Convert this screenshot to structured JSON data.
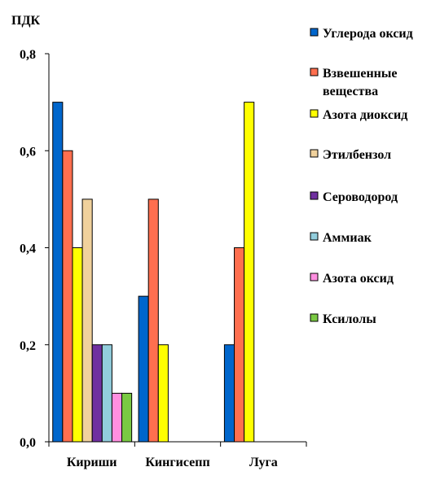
{
  "chart_data": {
    "type": "bar",
    "ylabel": "ПДК",
    "xlabel": "",
    "ylim": [
      0,
      0.8
    ],
    "y_ticks": [
      "0,0",
      "0,2",
      "0,4",
      "0,6",
      "0,8"
    ],
    "y_tick_values": [
      0,
      0.2,
      0.4,
      0.6,
      0.8
    ],
    "categories": [
      "Кириши",
      "Кингисепп",
      "Луга"
    ],
    "legend_position": "right",
    "grid": false,
    "series": [
      {
        "name": "Углерода оксид",
        "color": "#0066CC",
        "values": [
          0.7,
          0.3,
          0.2
        ]
      },
      {
        "name": "Взвешенные вещества",
        "name_lines": [
          "Взвешенные",
          "вещества"
        ],
        "color": "#FF6F4F",
        "values": [
          0.6,
          0.5,
          0.4
        ]
      },
      {
        "name": "Азота диоксид",
        "color": "#FFFF00",
        "values": [
          0.4,
          0.2,
          0.7
        ]
      },
      {
        "name": "Этилбензол",
        "color": "#F0D19C",
        "values": [
          0.5,
          null,
          null
        ]
      },
      {
        "name": "Сероводород",
        "color": "#7030A0",
        "values": [
          0.2,
          null,
          null
        ]
      },
      {
        "name": "Аммиак",
        "color": "#92CDDC",
        "values": [
          0.2,
          null,
          null
        ]
      },
      {
        "name": "Азота оксид",
        "color": "#FF8FE0",
        "values": [
          0.1,
          null,
          null
        ]
      },
      {
        "name": "Ксилолы",
        "color": "#7AC943",
        "values": [
          0.1,
          null,
          null
        ]
      }
    ]
  }
}
